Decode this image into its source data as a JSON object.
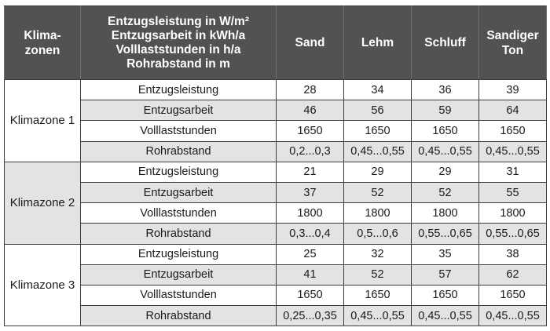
{
  "header": {
    "zone": "Klima-\nzonen",
    "desc_lines": [
      "Entzugsleistung in W/m²",
      "Entzugsarbeit in kWh/a",
      "Volllaststunden in h/a",
      "Rohrabstand in m"
    ],
    "cols": [
      "Sand",
      "Lehm",
      "Schluff",
      "Sandiger Ton"
    ]
  },
  "zones": [
    {
      "name": "Klimazone 1",
      "rows": [
        {
          "param": "Entzugsleistung",
          "values": [
            "28",
            "34",
            "36",
            "39"
          ]
        },
        {
          "param": "Entzugsarbeit",
          "values": [
            "46",
            "56",
            "59",
            "64"
          ]
        },
        {
          "param": "Volllaststunden",
          "values": [
            "1650",
            "1650",
            "1650",
            "1650"
          ]
        },
        {
          "param": "Rohrabstand",
          "values": [
            "0,2...0,3",
            "0,45...0,55",
            "0,45...0,55",
            "0,45...0,55"
          ]
        }
      ]
    },
    {
      "name": "Klimazone 2",
      "rows": [
        {
          "param": "Entzugsleistung",
          "values": [
            "21",
            "29",
            "29",
            "31"
          ]
        },
        {
          "param": "Entzugsarbeit",
          "values": [
            "37",
            "52",
            "52",
            "55"
          ]
        },
        {
          "param": "Volllaststunden",
          "values": [
            "1800",
            "1800",
            "1800",
            "1800"
          ]
        },
        {
          "param": "Rohrabstand",
          "values": [
            "0,3...0,4",
            "0,5...0,6",
            "0,55...0,65",
            "0,55...0,65"
          ]
        }
      ]
    },
    {
      "name": "Klimazone 3",
      "rows": [
        {
          "param": "Entzugsleistung",
          "values": [
            "25",
            "32",
            "35",
            "38"
          ]
        },
        {
          "param": "Entzugsarbeit",
          "values": [
            "41",
            "52",
            "57",
            "62"
          ]
        },
        {
          "param": "Volllaststunden",
          "values": [
            "1650",
            "1650",
            "1650",
            "1650"
          ]
        },
        {
          "param": "Rohrabstand",
          "values": [
            "0,25...0,35",
            "0,45...0,55",
            "0,45...0,55",
            "0,45...0,55"
          ]
        }
      ]
    }
  ]
}
